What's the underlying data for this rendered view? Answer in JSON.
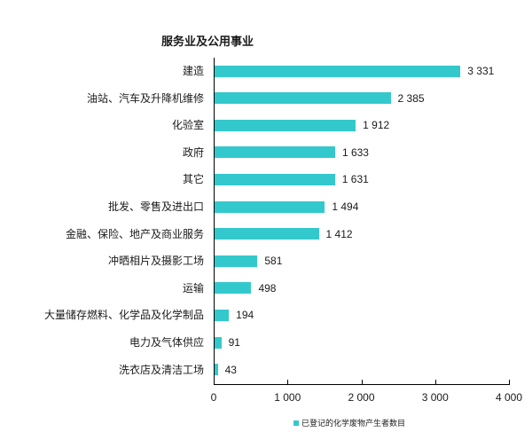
{
  "chart_data": {
    "type": "bar",
    "orientation": "horizontal",
    "title": "服务业及公用事业",
    "categories": [
      "建造",
      "油站、汽车及升降机维修",
      "化验室",
      "政府",
      "其它",
      "批发、零售及进出口",
      "金融、保险、地产及商业服务",
      "冲晒相片及摄影工场",
      "运输",
      "大量储存燃料、化学品及化学制品",
      "电力及气体供应",
      "洗衣店及清洁工场"
    ],
    "series": [
      {
        "name": "已登记的化学废物产生者数目",
        "color": "#33C9CC",
        "values": [
          3331,
          2385,
          1912,
          1633,
          1631,
          1494,
          1412,
          581,
          498,
          194,
          91,
          43
        ]
      }
    ],
    "value_labels": [
      "3 331",
      "2 385",
      "1 912",
      "1 633",
      "1 631",
      "1 494",
      "1 412",
      "581",
      "498",
      "194",
      "91",
      "43"
    ],
    "xlabel": "",
    "ylabel": "",
    "xlim": [
      0,
      4000
    ],
    "xticks": [
      0,
      1000,
      2000,
      3000,
      4000
    ],
    "xtick_labels": [
      "0",
      "1 000",
      "2 000",
      "3 000",
      "4 000"
    ],
    "grid": false,
    "legend_position": "bottom"
  }
}
